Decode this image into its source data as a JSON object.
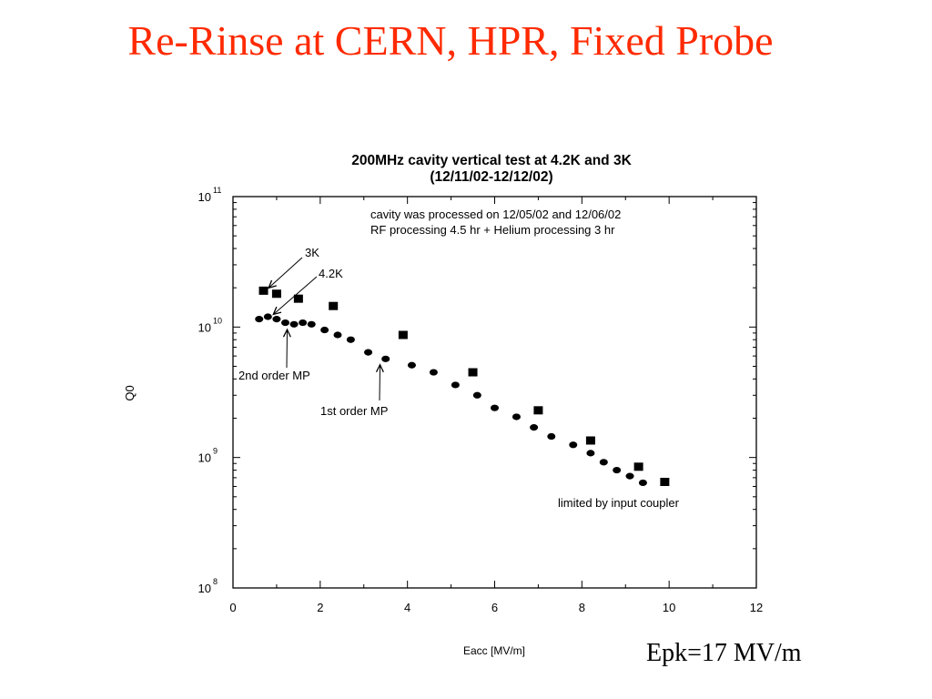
{
  "slide": {
    "title": "Re-Rinse at CERN, HPR, Fixed Probe",
    "note": "Epk=17 MV/m"
  },
  "colors": {
    "title": "#ff2a00",
    "marker": "#000000"
  },
  "chart_data": {
    "type": "scatter",
    "title": "200MHz cavity vertical test at 4.2K and 3K",
    "subtitle": "(12/11/02-12/12/02)",
    "xlabel": "Eacc [MV/m]",
    "ylabel": "Q0",
    "xlim": [
      0,
      12
    ],
    "ylim": [
      100000000,
      100000000000
    ],
    "yscale": "log",
    "x_ticks": [
      "0",
      "2",
      "4",
      "6",
      "8",
      "10",
      "12"
    ],
    "y_ticks": [
      {
        "base": "10",
        "exp": "8",
        "value": 100000000
      },
      {
        "base": "10",
        "exp": "9",
        "value": 1000000000
      },
      {
        "base": "10",
        "exp": "10",
        "value": 10000000000
      },
      {
        "base": "10",
        "exp": "11",
        "value": 100000000000
      }
    ],
    "grid": false,
    "series": [
      {
        "name": "3K",
        "marker": "square",
        "x": [
          0.7,
          1.0,
          1.5,
          2.3,
          3.9,
          5.5,
          7.0,
          8.2,
          9.3,
          9.9
        ],
        "y": [
          19000000000,
          18000000000,
          16500000000,
          14500000000,
          8700000000,
          4500000000,
          2300000000,
          1350000000,
          850000000,
          650000000
        ]
      },
      {
        "name": "4.2K",
        "marker": "circle",
        "x": [
          0.6,
          0.8,
          1.0,
          1.2,
          1.4,
          1.6,
          1.8,
          2.1,
          2.4,
          2.7,
          3.1,
          3.5,
          4.1,
          4.6,
          5.1,
          5.6,
          6.0,
          6.5,
          6.9,
          7.3,
          7.8,
          8.2,
          8.5,
          8.8,
          9.1,
          9.4
        ],
        "y": [
          11500000000,
          12000000000,
          11500000000,
          10800000000,
          10500000000,
          10800000000,
          10500000000,
          9500000000,
          8700000000,
          8000000000,
          6400000000,
          5700000000,
          5100000000,
          4500000000,
          3600000000,
          3000000000,
          2400000000,
          2050000000,
          1700000000,
          1450000000,
          1250000000,
          1080000000,
          920000000,
          800000000,
          720000000,
          640000000
        ]
      }
    ],
    "annotations": [
      {
        "text": "cavity was processed on 12/05/02 and 12/06/02"
      },
      {
        "text": "RF processing 4.5 hr + Helium processing 3 hr"
      },
      {
        "text": "3K",
        "points_to": [
          0.65,
          19000000000
        ]
      },
      {
        "text": "4.2K",
        "points_to": [
          0.8,
          12300000000
        ]
      },
      {
        "text": "2nd order MP",
        "points_to": [
          1.2,
          10200000000
        ]
      },
      {
        "text": "1st order MP",
        "points_to": [
          3.35,
          5400000000
        ]
      },
      {
        "text": "limited by input coupler"
      }
    ]
  }
}
